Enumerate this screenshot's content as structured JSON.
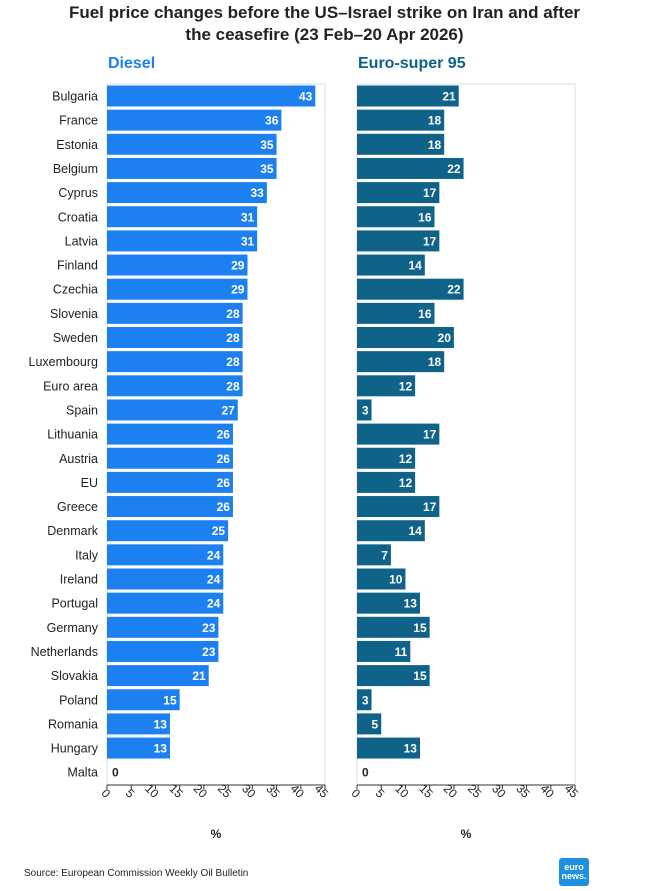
{
  "title_line1": "Fuel price changes before the US–Israel strike on Iran and after",
  "title_line2": "the ceasefire (23 Feb–20 Apr 2026)",
  "source": "Source: European Commission Weekly Oil Bulletin",
  "logo_top": "euro",
  "logo_bottom": "news.",
  "colors": {
    "diesel": "#1d80f0",
    "euro95": "#0f6288",
    "axis": "#333333",
    "text": "#222222"
  },
  "chart_data": {
    "type": "bar",
    "orientation": "horizontal",
    "title": "Fuel price changes before the US–Israel strike on Iran and after the ceasefire (23 Feb–20 Apr 2026)",
    "categories": [
      "Bulgaria",
      "France",
      "Estonia",
      "Belgium",
      "Cyprus",
      "Croatia",
      "Latvia",
      "Finland",
      "Czechia",
      "Slovenia",
      "Sweden",
      "Luxembourg",
      "Euro area",
      "Spain",
      "Lithuania",
      "Austria",
      "EU",
      "Greece",
      "Denmark",
      "Italy",
      "Ireland",
      "Portugal",
      "Germany",
      "Netherlands",
      "Slovakia",
      "Poland",
      "Romania",
      "Hungary",
      "Malta"
    ],
    "series": [
      {
        "name": "Diesel",
        "values": [
          43,
          36,
          35,
          35,
          33,
          31,
          31,
          29,
          29,
          28,
          28,
          28,
          28,
          27,
          26,
          26,
          26,
          26,
          25,
          24,
          24,
          24,
          23,
          23,
          21,
          15,
          13,
          13,
          0
        ]
      },
      {
        "name": "Euro-super 95",
        "values": [
          21,
          18,
          18,
          22,
          17,
          16,
          17,
          14,
          22,
          16,
          20,
          18,
          12,
          3,
          17,
          12,
          12,
          17,
          14,
          7,
          10,
          13,
          15,
          11,
          15,
          3,
          5,
          13,
          0
        ]
      }
    ],
    "xlabel": "%",
    "xticks": [
      0,
      5,
      10,
      15,
      20,
      25,
      30,
      35,
      40,
      45
    ],
    "xlim": [
      0,
      45
    ]
  }
}
